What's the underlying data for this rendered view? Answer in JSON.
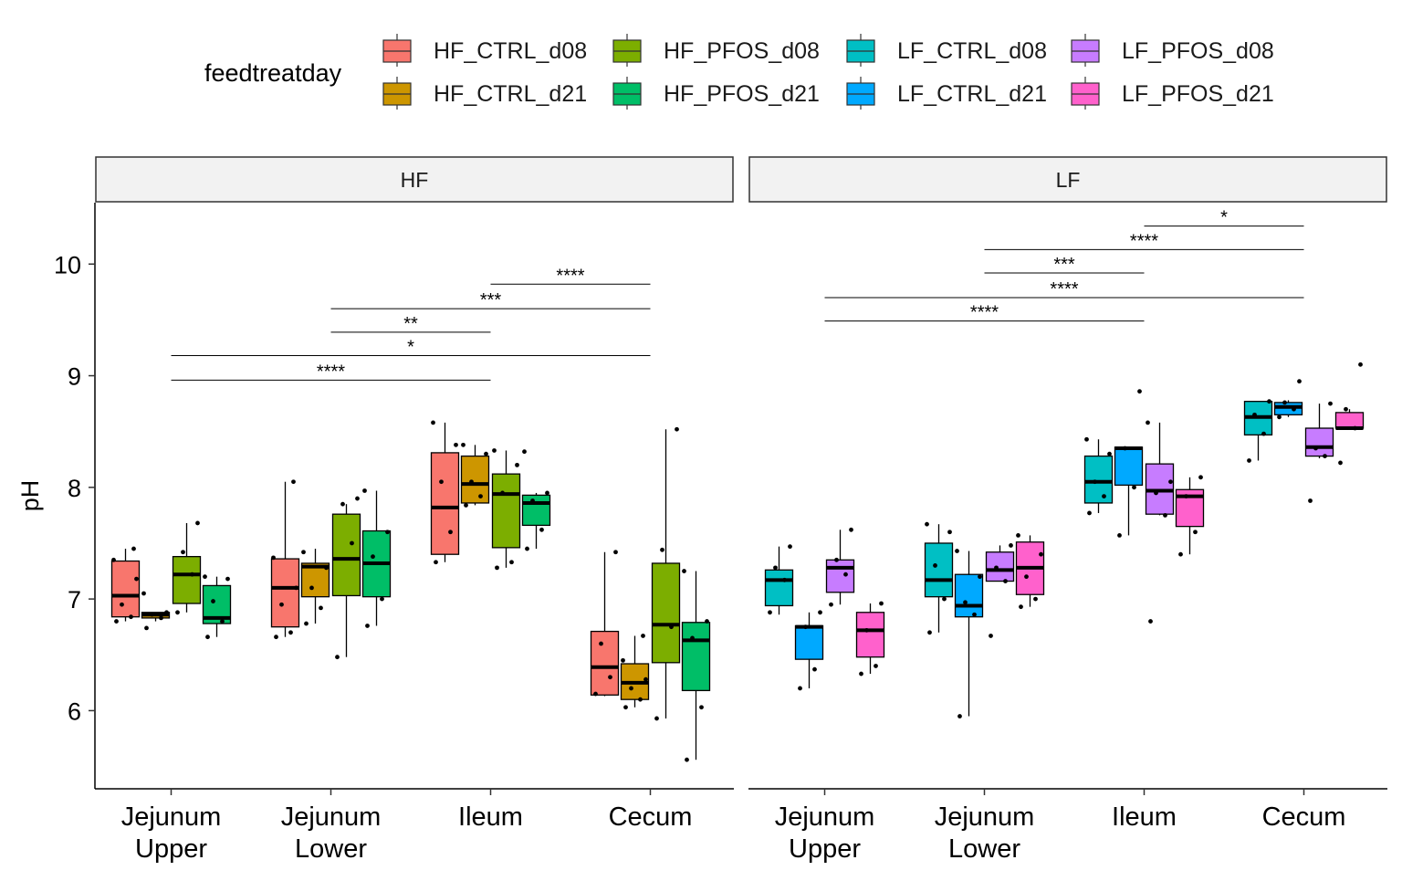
{
  "chart_data": {
    "type": "box",
    "ylabel": "pH",
    "xlabel": "",
    "ylim": [
      5.3,
      10.55
    ],
    "yticks": [
      6,
      7,
      8,
      9,
      10
    ],
    "grid": false,
    "legend": {
      "title": "feedtreatday",
      "position": "top",
      "entries": [
        {
          "name": "HF_CTRL_d08",
          "color": "#F8766D"
        },
        {
          "name": "HF_CTRL_d21",
          "color": "#CD9600"
        },
        {
          "name": "HF_PFOS_d08",
          "color": "#7CAE00"
        },
        {
          "name": "HF_PFOS_d21",
          "color": "#00BE67"
        },
        {
          "name": "LF_CTRL_d08",
          "color": "#00BFC4"
        },
        {
          "name": "LF_CTRL_d21",
          "color": "#00A9FF"
        },
        {
          "name": "LF_PFOS_d08",
          "color": "#C77CFF"
        },
        {
          "name": "LF_PFOS_d21",
          "color": "#FF61CC"
        }
      ]
    },
    "categories": [
      "Jejunum Upper",
      "Jejunum Lower",
      "Ileum",
      "Cecum"
    ],
    "panels": [
      {
        "name": "HF",
        "series": [
          {
            "name": "HF_CTRL_d08",
            "boxes": [
              {
                "min": 6.8,
                "q1": 6.84,
                "median": 7.03,
                "q3": 7.34,
                "max": 7.45,
                "points": [
                  6.8,
                  6.84,
                  6.95,
                  7.18,
                  7.35,
                  7.45
                ]
              },
              {
                "min": 6.66,
                "q1": 6.75,
                "median": 7.1,
                "q3": 7.36,
                "max": 8.05,
                "points": [
                  6.66,
                  6.7,
                  6.95,
                  7.1,
                  7.37,
                  8.05
                ]
              },
              {
                "min": 7.33,
                "q1": 7.4,
                "median": 7.82,
                "q3": 8.31,
                "max": 8.58,
                "points": [
                  7.33,
                  7.6,
                  8.05,
                  8.38,
                  8.58
                ]
              },
              {
                "min": 6.13,
                "q1": 6.14,
                "median": 6.39,
                "q3": 6.71,
                "max": 7.42,
                "points": [
                  6.15,
                  6.3,
                  6.6,
                  7.42
                ]
              }
            ]
          },
          {
            "name": "HF_CTRL_d21",
            "boxes": [
              {
                "min": 6.8,
                "q1": 6.83,
                "median": 6.86,
                "q3": 6.88,
                "max": 6.88,
                "points": [
                  6.74,
                  6.83,
                  6.86,
                  6.88,
                  7.05
                ]
              },
              {
                "min": 6.78,
                "q1": 7.02,
                "median": 7.29,
                "q3": 7.32,
                "max": 7.45,
                "points": [
                  6.78,
                  6.92,
                  7.1,
                  7.28,
                  7.42
                ]
              },
              {
                "min": 7.84,
                "q1": 7.86,
                "median": 8.03,
                "q3": 8.28,
                "max": 8.38,
                "points": [
                  7.84,
                  7.92,
                  8.05,
                  8.3,
                  8.38
                ]
              },
              {
                "min": 6.03,
                "q1": 6.1,
                "median": 6.25,
                "q3": 6.42,
                "max": 6.67,
                "points": [
                  6.03,
                  6.1,
                  6.2,
                  6.28,
                  6.45,
                  6.67
                ]
              }
            ]
          },
          {
            "name": "HF_PFOS_d08",
            "boxes": [
              {
                "min": 6.88,
                "q1": 6.96,
                "median": 7.22,
                "q3": 7.38,
                "max": 7.68,
                "points": [
                  6.88,
                  7.22,
                  7.42,
                  7.68
                ]
              },
              {
                "min": 6.48,
                "q1": 7.03,
                "median": 7.36,
                "q3": 7.76,
                "max": 7.85,
                "points": [
                  6.48,
                  7.5,
                  7.85,
                  7.9
                ]
              },
              {
                "min": 7.28,
                "q1": 7.46,
                "median": 7.94,
                "q3": 8.12,
                "max": 8.33,
                "points": [
                  7.28,
                  7.33,
                  7.95,
                  8.2,
                  8.33
                ]
              },
              {
                "min": 5.93,
                "q1": 6.43,
                "median": 6.77,
                "q3": 7.32,
                "max": 8.52,
                "points": [
                  5.93,
                  6.75,
                  7.44,
                  8.52
                ]
              }
            ]
          },
          {
            "name": "HF_PFOS_d21",
            "boxes": [
              {
                "min": 6.66,
                "q1": 6.78,
                "median": 6.83,
                "q3": 7.12,
                "max": 7.2,
                "points": [
                  6.66,
                  6.8,
                  6.98,
                  7.18,
                  7.2
                ]
              },
              {
                "min": 6.76,
                "q1": 7.02,
                "median": 7.32,
                "q3": 7.61,
                "max": 7.97,
                "points": [
                  6.76,
                  7.0,
                  7.38,
                  7.6,
                  7.97
                ]
              },
              {
                "min": 7.45,
                "q1": 7.66,
                "median": 7.86,
                "q3": 7.93,
                "max": 7.95,
                "points": [
                  7.45,
                  7.62,
                  7.88,
                  7.95,
                  8.32
                ]
              },
              {
                "min": 5.56,
                "q1": 6.18,
                "median": 6.63,
                "q3": 6.79,
                "max": 7.25,
                "points": [
                  5.56,
                  6.03,
                  6.65,
                  6.8,
                  7.25
                ]
              }
            ]
          }
        ],
        "significance": [
          {
            "from": "Jejunum Upper",
            "to": "Ileum",
            "label": "****",
            "y": 8.96
          },
          {
            "from": "Jejunum Upper",
            "to": "Cecum",
            "label": "*",
            "y": 9.18
          },
          {
            "from": "Jejunum Lower",
            "to": "Ileum",
            "label": "**",
            "y": 9.39
          },
          {
            "from": "Jejunum Lower",
            "to": "Cecum",
            "label": "***",
            "y": 9.6
          },
          {
            "from": "Ileum",
            "to": "Cecum",
            "label": "****",
            "y": 9.82
          }
        ]
      },
      {
        "name": "LF",
        "series": [
          {
            "name": "LF_CTRL_d08",
            "boxes": [
              {
                "min": 6.86,
                "q1": 6.94,
                "median": 7.17,
                "q3": 7.26,
                "max": 7.47,
                "points": [
                  6.88,
                  7.17,
                  7.28,
                  7.47
                ]
              },
              {
                "min": 6.7,
                "q1": 7.02,
                "median": 7.17,
                "q3": 7.5,
                "max": 7.67,
                "points": [
                  6.7,
                  7.0,
                  7.3,
                  7.6,
                  7.67
                ]
              },
              {
                "min": 7.77,
                "q1": 7.86,
                "median": 8.05,
                "q3": 8.28,
                "max": 8.43,
                "points": [
                  7.77,
                  7.92,
                  8.05,
                  8.3,
                  8.43
                ]
              },
              {
                "min": 8.24,
                "q1": 8.47,
                "median": 8.63,
                "q3": 8.77,
                "max": 8.77,
                "points": [
                  8.24,
                  8.48,
                  8.65,
                  8.77
                ]
              }
            ]
          },
          {
            "name": "LF_CTRL_d21",
            "boxes": [
              {
                "min": 6.2,
                "q1": 6.46,
                "median": 6.75,
                "q3": 6.76,
                "max": 6.88,
                "points": [
                  6.2,
                  6.37,
                  6.75,
                  6.88
                ]
              },
              {
                "min": 5.95,
                "q1": 6.84,
                "median": 6.94,
                "q3": 7.22,
                "max": 7.43,
                "points": [
                  5.95,
                  6.86,
                  6.97,
                  7.2,
                  7.43
                ]
              },
              {
                "min": 7.57,
                "q1": 8.02,
                "median": 8.35,
                "q3": 8.36,
                "max": 8.36,
                "points": [
                  7.57,
                  8.0,
                  8.35,
                  8.86
                ]
              },
              {
                "min": 8.63,
                "q1": 8.65,
                "median": 8.72,
                "q3": 8.76,
                "max": 8.78,
                "points": [
                  8.63,
                  8.7,
                  8.76,
                  8.95
                ]
              }
            ]
          },
          {
            "name": "LF_PFOS_d08",
            "boxes": [
              {
                "min": 6.95,
                "q1": 7.06,
                "median": 7.28,
                "q3": 7.35,
                "max": 7.62,
                "points": [
                  6.95,
                  7.22,
                  7.35,
                  7.62
                ]
              },
              {
                "min": 7.16,
                "q1": 7.16,
                "median": 7.26,
                "q3": 7.42,
                "max": 7.48,
                "points": [
                  6.67,
                  7.16,
                  7.28,
                  7.48
                ]
              },
              {
                "min": 7.75,
                "q1": 7.76,
                "median": 7.97,
                "q3": 8.21,
                "max": 8.58,
                "points": [
                  6.8,
                  7.75,
                  7.95,
                  8.05,
                  8.58
                ]
              },
              {
                "min": 8.26,
                "q1": 8.28,
                "median": 8.36,
                "q3": 8.53,
                "max": 8.75,
                "points": [
                  7.88,
                  8.28,
                  8.35,
                  8.75
                ]
              }
            ]
          },
          {
            "name": "LF_PFOS_d21",
            "boxes": [
              {
                "min": 6.33,
                "q1": 6.48,
                "median": 6.72,
                "q3": 6.88,
                "max": 6.96,
                "points": [
                  6.33,
                  6.4,
                  6.72,
                  6.96
                ]
              },
              {
                "min": 6.93,
                "q1": 7.04,
                "median": 7.28,
                "q3": 7.51,
                "max": 7.57,
                "points": [
                  6.93,
                  7.0,
                  7.2,
                  7.4,
                  7.57
                ]
              },
              {
                "min": 7.4,
                "q1": 7.65,
                "median": 7.92,
                "q3": 7.98,
                "max": 8.09,
                "points": [
                  7.4,
                  7.6,
                  7.92,
                  8.09
                ]
              },
              {
                "min": 8.52,
                "q1": 8.53,
                "median": 8.53,
                "q3": 8.67,
                "max": 8.7,
                "points": [
                  8.22,
                  8.53,
                  8.7,
                  9.1
                ]
              }
            ]
          }
        ],
        "significance": [
          {
            "from": "Jejunum Upper",
            "to": "Ileum",
            "label": "****",
            "y": 9.49
          },
          {
            "from": "Jejunum Upper",
            "to": "Cecum",
            "label": "****",
            "y": 9.7
          },
          {
            "from": "Jejunum Lower",
            "to": "Ileum",
            "label": "***",
            "y": 9.92
          },
          {
            "from": "Jejunum Lower",
            "to": "Cecum",
            "label": "****",
            "y": 10.13
          },
          {
            "from": "Ileum",
            "to": "Cecum",
            "label": "*",
            "y": 10.34
          }
        ]
      }
    ]
  }
}
